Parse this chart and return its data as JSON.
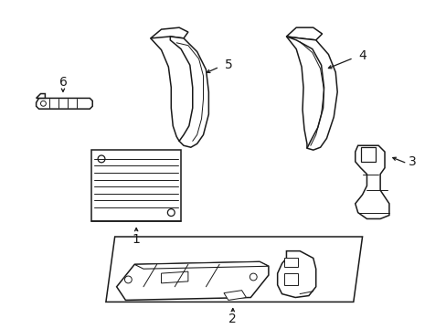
{
  "bg_color": "#ffffff",
  "line_color": "#1a1a1a",
  "line_width": 1.1,
  "fig_width": 4.89,
  "fig_height": 3.6,
  "dpi": 100
}
